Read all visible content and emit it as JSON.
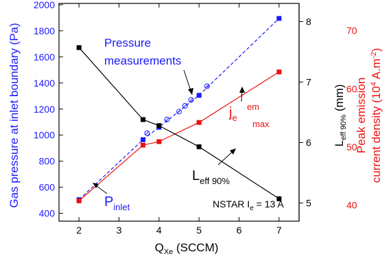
{
  "chart_data": {
    "type": "line",
    "x_label": "Q",
    "x_label_sub": "Xe",
    "x_label_unit": " (SCCM)",
    "xlim": [
      1.5,
      7.5
    ],
    "x_ticks": [
      2,
      3,
      4,
      5,
      6,
      7
    ],
    "axes": {
      "left": {
        "label": "Gas pressure at inlet boundary (Pa)",
        "color": "#1a1aff",
        "ylim": [
          340,
          2010
        ],
        "ticks": [
          400,
          600,
          800,
          1000,
          1200,
          1400,
          1600,
          1800,
          2000
        ]
      },
      "right_inner": {
        "label": "L",
        "label_sub": "eff 90%",
        "label_unit": " (mm)",
        "color": "#000000",
        "ylim": [
          4.7,
          8.3
        ],
        "ticks": [
          5,
          6,
          7,
          8
        ]
      },
      "right_outer": {
        "label_line1": "Peak emission",
        "label_line2_prefix": "current density (10",
        "label_line2_sup1": "4",
        "label_line2_mid": " A.m",
        "label_line2_sup2": "-2",
        "label_line2_suffix": ")",
        "color": "#ee1111",
        "ylim": [
          37.2,
          74.7
        ],
        "ticks": [
          40,
          50,
          60,
          70
        ]
      }
    },
    "series": [
      {
        "key": "pressure",
        "axis": "left",
        "color": "#1a1aff",
        "dashed": true,
        "marker": "square",
        "x": [
          2,
          3.6,
          4,
          5,
          7
        ],
        "y": [
          505,
          965,
          1060,
          1305,
          1895
        ]
      },
      {
        "key": "measurements",
        "axis": "left",
        "color": "#1a1aff",
        "marker": "circle-open",
        "x": [
          3.7,
          4.2,
          4.5,
          4.65,
          4.8,
          5.2
        ],
        "y": [
          1015,
          1120,
          1180,
          1225,
          1270,
          1375
        ]
      },
      {
        "key": "jmax",
        "axis": "right_outer",
        "color": "#ee1111",
        "dashed": false,
        "marker": "square",
        "x": [
          2,
          3.6,
          4,
          5,
          7
        ],
        "y": [
          40.7,
          50.3,
          50.9,
          54.2,
          62.9
        ]
      },
      {
        "key": "leff",
        "axis": "right_inner",
        "color": "#000000",
        "dashed": false,
        "marker": "square",
        "x": [
          2,
          3.6,
          4,
          5,
          7
        ],
        "y": [
          7.57,
          6.38,
          6.28,
          5.93,
          5.07
        ]
      }
    ],
    "annotations": {
      "pressure_label_1": "Pressure",
      "pressure_label_2": "measurements",
      "jmax_base": "j",
      "jmax_sub_e": "e",
      "jmax_sup": "em",
      "jmax_sub_max": "max",
      "leff_base": "L",
      "leff_sub": "eff 90%",
      "pinlet_base": "P",
      "pinlet_sub": "inlet",
      "condition_prefix": "NSTAR I",
      "condition_sub": "e",
      "condition_suffix": " = 13 A"
    }
  }
}
